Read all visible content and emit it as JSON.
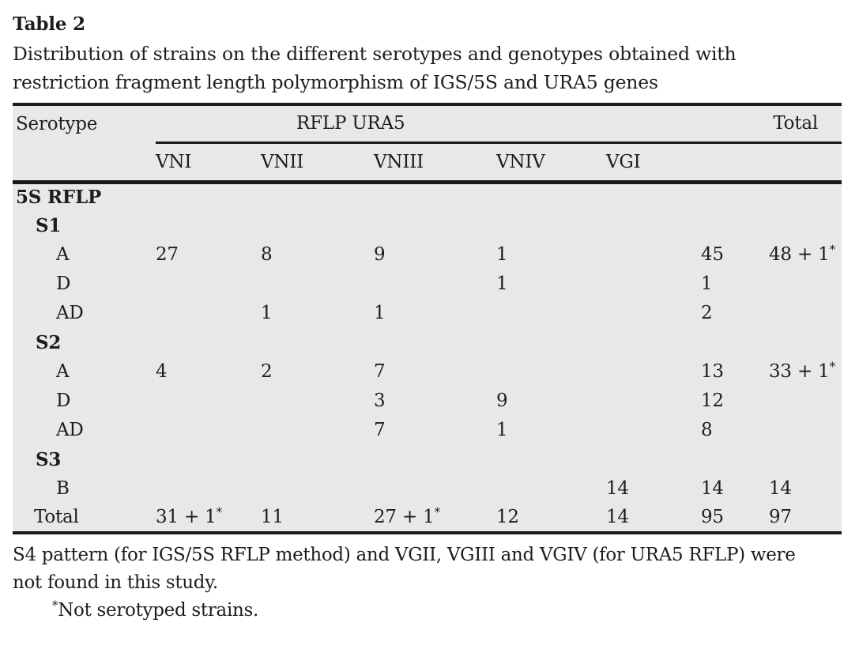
{
  "title": "Table 2",
  "caption_lines": [
    "Distribution of strains on the different serotypes and genotypes obtained with",
    "restriction fragment length polymorphism of IGS/5S and URA5 genes"
  ],
  "colors": {
    "page_background": "#ffffff",
    "table_background": "#e8e8e9",
    "rule": "#1a1a1a",
    "text": "#1d1d1d"
  },
  "table": {
    "header": {
      "col1": "Serotype",
      "spanner": "RFLP URA5",
      "total": "Total",
      "subcols": [
        "VNI",
        "VNII",
        "VNIII",
        "VNIV",
        "VGI"
      ]
    },
    "rows": [
      {
        "label": "5S RFLP",
        "style": "section",
        "cells": [
          "",
          "",
          "",
          "",
          "",
          "",
          ""
        ]
      },
      {
        "label": "S1",
        "style": "group",
        "cells": [
          "",
          "",
          "",
          "",
          "",
          "",
          ""
        ]
      },
      {
        "label": "A",
        "style": "item",
        "cells": [
          "27",
          "8",
          "9",
          "1",
          "",
          "45",
          "48 + 1*"
        ]
      },
      {
        "label": "D",
        "style": "item",
        "cells": [
          "",
          "",
          "",
          "1",
          "",
          "1",
          ""
        ]
      },
      {
        "label": "AD",
        "style": "item",
        "cells": [
          "",
          "1",
          "1",
          "",
          "",
          "2",
          ""
        ]
      },
      {
        "label": "S2",
        "style": "group",
        "cells": [
          "",
          "",
          "",
          "",
          "",
          "",
          ""
        ]
      },
      {
        "label": "A",
        "style": "item",
        "cells": [
          "4",
          "2",
          "7",
          "",
          "",
          "13",
          "33 + 1*"
        ]
      },
      {
        "label": "D",
        "style": "item",
        "cells": [
          "",
          "",
          "3",
          "9",
          "",
          "12",
          ""
        ]
      },
      {
        "label": "AD",
        "style": "item",
        "cells": [
          "",
          "",
          "7",
          "1",
          "",
          "8",
          ""
        ]
      },
      {
        "label": "S3",
        "style": "group",
        "cells": [
          "",
          "",
          "",
          "",
          "",
          "",
          ""
        ]
      },
      {
        "label": "B",
        "style": "item",
        "cells": [
          "",
          "",
          "",
          "",
          "14",
          "14",
          "14"
        ]
      },
      {
        "label": "Total",
        "style": "total",
        "cells": [
          "31 + 1*",
          "11",
          "27 + 1*",
          "12",
          "14",
          "95",
          "97"
        ]
      }
    ]
  },
  "footnotes": {
    "note_lines": [
      "S4 pattern (for IGS/5S RFLP method) and VGII, VGIII and VGIV (for URA5 RFLP) were",
      "not found in this study."
    ],
    "asterisk_note": {
      "marker": "*",
      "text": "Not serotyped strains."
    }
  }
}
